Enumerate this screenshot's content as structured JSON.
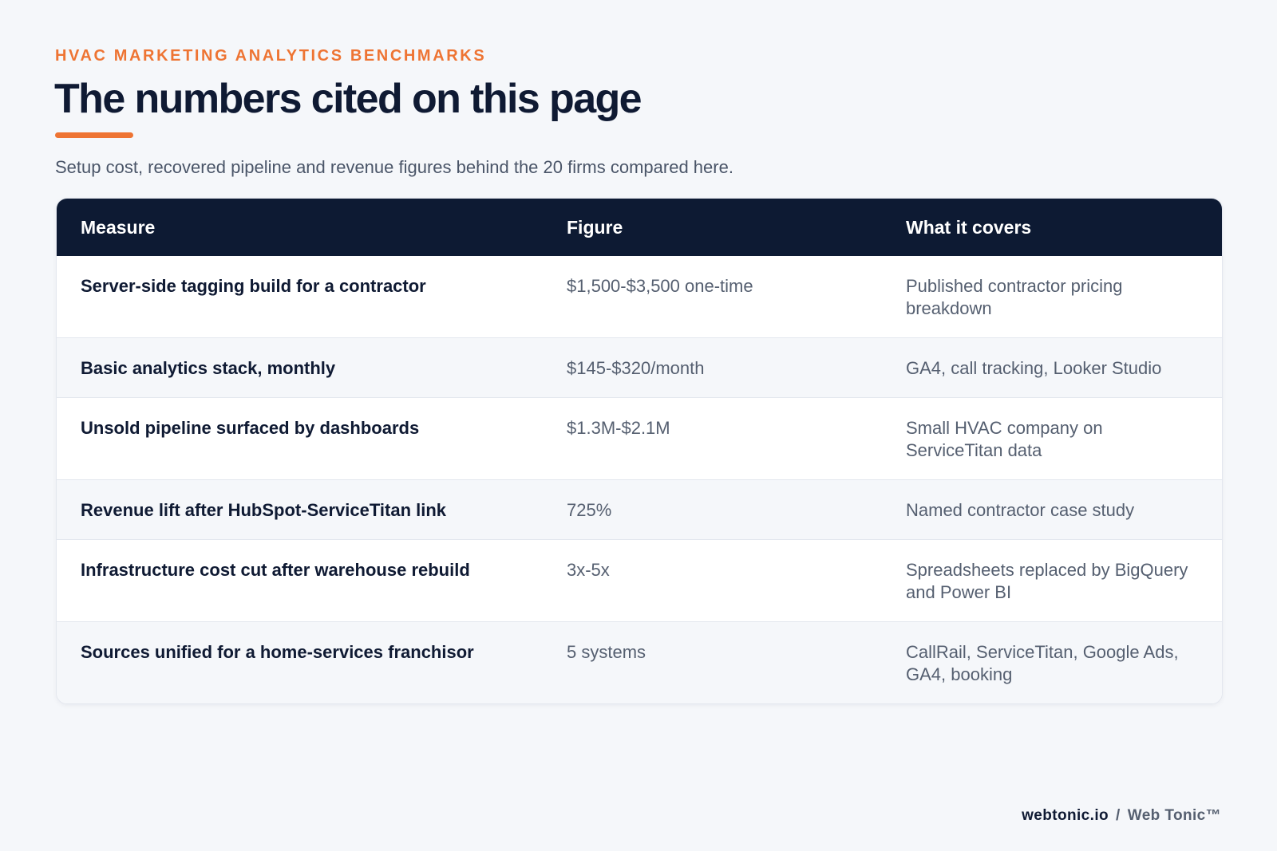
{
  "header": {
    "eyebrow": "HVAC MARKETING ANALYTICS BENCHMARKS",
    "title": "The numbers cited on this page",
    "subtitle": "Setup cost, recovered pipeline and revenue figures behind the 20 firms compared here."
  },
  "table": {
    "columns": [
      "Measure",
      "Figure",
      "What it covers"
    ],
    "rows": [
      {
        "measure": "Server-side tagging build for a contractor",
        "figure": "$1,500-$3,500 one-time",
        "covers": "Published contractor pricing breakdown"
      },
      {
        "measure": "Basic analytics stack, monthly",
        "figure": "$145-$320/month",
        "covers": "GA4, call tracking, Looker Studio"
      },
      {
        "measure": "Unsold pipeline surfaced by dashboards",
        "figure": "$1.3M-$2.1M",
        "covers": "Small HVAC company on ServiceTitan data"
      },
      {
        "measure": "Revenue lift after HubSpot-ServiceTitan link",
        "figure": "725%",
        "covers": "Named contractor case study"
      },
      {
        "measure": "Infrastructure cost cut after warehouse rebuild",
        "figure": "3x-5x",
        "covers": "Spreadsheets replaced by BigQuery and Power BI"
      },
      {
        "measure": "Sources unified for a home-services franchisor",
        "figure": "5 systems",
        "covers": "CallRail, ServiceTitan, Google Ads, GA4, booking"
      }
    ]
  },
  "footer": {
    "domain": "webtonic.io",
    "separator": "/",
    "brand": "Web Tonic™"
  },
  "colors": {
    "accent": "#ee7433",
    "navy": "#0d1a33",
    "background": "#f5f7fa"
  }
}
